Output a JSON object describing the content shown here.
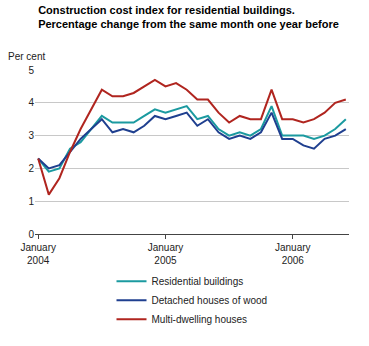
{
  "chart_data": {
    "type": "line",
    "title": "Construction cost index for residential buildings.\nPercentage change from the same month one year before",
    "y_label": "Per cent",
    "categories": [
      "January 2004",
      null,
      null,
      null,
      null,
      null,
      null,
      null,
      null,
      null,
      null,
      null,
      "January 2005",
      null,
      null,
      null,
      null,
      null,
      null,
      null,
      null,
      null,
      null,
      null,
      "January 2006",
      null,
      null,
      null,
      null,
      null
    ],
    "series": [
      {
        "name": "Residential buildings",
        "color": "#1b9aa0",
        "values": [
          2.3,
          1.9,
          2.0,
          2.6,
          2.8,
          3.2,
          3.6,
          3.4,
          3.4,
          3.4,
          3.6,
          3.8,
          3.7,
          3.8,
          3.9,
          3.5,
          3.6,
          3.2,
          3.0,
          3.1,
          3.0,
          3.2,
          3.9,
          3.0,
          3.0,
          3.0,
          2.9,
          3.0,
          3.2,
          3.5
        ]
      },
      {
        "name": "Detached houses of wood",
        "color": "#1f3f8f",
        "values": [
          2.3,
          2.0,
          2.1,
          2.5,
          2.9,
          3.2,
          3.5,
          3.1,
          3.2,
          3.1,
          3.3,
          3.6,
          3.5,
          3.6,
          3.7,
          3.3,
          3.5,
          3.1,
          2.9,
          3.0,
          2.9,
          3.1,
          3.7,
          2.9,
          2.9,
          2.7,
          2.6,
          2.9,
          3.0,
          3.2
        ]
      },
      {
        "name": "Multi-dwelling houses",
        "color": "#b0251f",
        "values": [
          2.3,
          1.2,
          1.7,
          2.5,
          3.2,
          3.8,
          4.4,
          4.2,
          4.2,
          4.3,
          4.5,
          4.7,
          4.5,
          4.6,
          4.4,
          4.1,
          4.1,
          3.7,
          3.4,
          3.6,
          3.5,
          3.5,
          4.4,
          3.5,
          3.5,
          3.4,
          3.5,
          3.7,
          4.0,
          4.1
        ]
      }
    ],
    "ylim": [
      0,
      5
    ],
    "yticks": [
      0,
      1,
      2,
      3,
      4,
      5
    ],
    "grid": true,
    "legend": "bottom"
  }
}
